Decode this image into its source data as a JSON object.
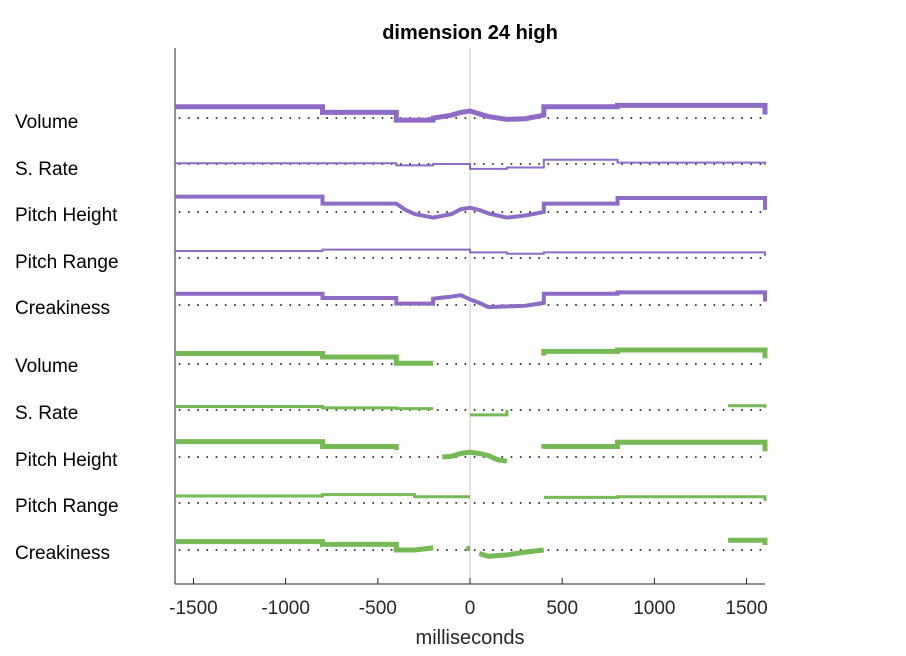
{
  "chart_data": {
    "type": "line",
    "title": "dimension 24 high",
    "xlabel": "milliseconds",
    "xlim": [
      -1600,
      1600
    ],
    "xticks": [
      -1500,
      -1000,
      -500,
      0,
      500,
      1000,
      1500
    ],
    "xtick_labels": [
      "-1500",
      "-1000",
      "-500",
      "0",
      "500",
      "1000",
      "1500"
    ],
    "zero_line": true,
    "grid": false,
    "colors": {
      "group1": "#8e6bc4",
      "group2": "#77b957"
    },
    "series": [
      {
        "label": "Volume",
        "group": 1,
        "color": "#8e6bc4",
        "width": 5,
        "points": [
          [
            -1600,
            1.6
          ],
          [
            -800,
            1.6
          ],
          [
            -800,
            0.8
          ],
          [
            -400,
            0.8
          ],
          [
            -400,
            -0.3
          ],
          [
            -200,
            -0.3
          ],
          [
            -200,
            0
          ],
          [
            -100,
            0.4
          ],
          [
            -50,
            0.8
          ],
          [
            0,
            1
          ],
          [
            50,
            0.6
          ],
          [
            100,
            0.2
          ],
          [
            200,
            -0.2
          ],
          [
            300,
            -0.1
          ],
          [
            400,
            0.4
          ],
          [
            400,
            1.6
          ],
          [
            800,
            1.6
          ],
          [
            800,
            1.8
          ],
          [
            1600,
            1.8
          ],
          [
            1600,
            0.5
          ]
        ]
      },
      {
        "label": "S. Rate",
        "group": 1,
        "color": "#8e6bc4",
        "width": 2,
        "points": [
          [
            -1600,
            0.1
          ],
          [
            -400,
            0.1
          ],
          [
            -400,
            -0.2
          ],
          [
            -200,
            -0.2
          ],
          [
            -200,
            0
          ],
          [
            0,
            0
          ],
          [
            0,
            -0.7
          ],
          [
            200,
            -0.7
          ],
          [
            200,
            -0.5
          ],
          [
            400,
            -0.5
          ],
          [
            400,
            0.6
          ],
          [
            800,
            0.6
          ],
          [
            800,
            0.2
          ],
          [
            1600,
            0.2
          ],
          [
            1600,
            -0.1
          ]
        ]
      },
      {
        "label": "Pitch Height",
        "group": 1,
        "color": "#8e6bc4",
        "width": 4,
        "points": [
          [
            -1600,
            2.2
          ],
          [
            -800,
            2.2
          ],
          [
            -800,
            1.2
          ],
          [
            -400,
            1.2
          ],
          [
            -350,
            0.3
          ],
          [
            -300,
            -0.3
          ],
          [
            -200,
            -0.8
          ],
          [
            -100,
            -0.3
          ],
          [
            -50,
            0.4
          ],
          [
            0,
            0.6
          ],
          [
            50,
            0.3
          ],
          [
            100,
            -0.2
          ],
          [
            200,
            -0.8
          ],
          [
            300,
            -0.5
          ],
          [
            400,
            0
          ],
          [
            400,
            1.2
          ],
          [
            800,
            1.2
          ],
          [
            800,
            2
          ],
          [
            1600,
            2
          ],
          [
            1600,
            0.3
          ]
        ]
      },
      {
        "label": "Pitch Range",
        "group": 1,
        "color": "#8e6bc4",
        "width": 2,
        "points": [
          [
            -1600,
            1
          ],
          [
            -800,
            1
          ],
          [
            -800,
            1.2
          ],
          [
            0,
            1.2
          ],
          [
            0,
            0.8
          ],
          [
            200,
            0.8
          ],
          [
            200,
            0.6
          ],
          [
            400,
            0.6
          ],
          [
            400,
            0.8
          ],
          [
            1600,
            0.8
          ],
          [
            1600,
            0.3
          ]
        ]
      },
      {
        "label": "Creakiness",
        "group": 1,
        "color": "#8e6bc4",
        "width": 4,
        "points": [
          [
            -1600,
            1.6
          ],
          [
            -800,
            1.6
          ],
          [
            -800,
            1
          ],
          [
            -400,
            1
          ],
          [
            -400,
            0.2
          ],
          [
            -200,
            0.2
          ],
          [
            -200,
            0.9
          ],
          [
            -100,
            1.2
          ],
          [
            -50,
            1.4
          ],
          [
            0,
            0.8
          ],
          [
            50,
            0.3
          ],
          [
            100,
            -0.3
          ],
          [
            200,
            -0.2
          ],
          [
            300,
            -0.1
          ],
          [
            400,
            0.3
          ],
          [
            400,
            1.6
          ],
          [
            800,
            1.6
          ],
          [
            800,
            1.8
          ],
          [
            1600,
            1.8
          ],
          [
            1600,
            0.5
          ]
        ]
      },
      {
        "label": "Volume",
        "group": 2,
        "color": "#77b957",
        "width": 5,
        "segments": [
          [
            [
              -1600,
              1.5
            ],
            [
              -800,
              1.5
            ],
            [
              -800,
              1
            ],
            [
              -400,
              1
            ],
            [
              -400,
              0.1
            ],
            [
              -200,
              0.1
            ]
          ],
          [
            [
              400,
              1.2
            ],
            [
              400,
              1.8
            ],
            [
              800,
              1.8
            ],
            [
              800,
              2
            ],
            [
              1600,
              2
            ],
            [
              1600,
              0.8
            ]
          ]
        ]
      },
      {
        "label": "S. Rate",
        "group": 2,
        "color": "#77b957",
        "width": 3,
        "segments": [
          [
            [
              -1600,
              0.5
            ],
            [
              -800,
              0.5
            ],
            [
              -800,
              0.3
            ],
            [
              -400,
              0.3
            ],
            [
              -400,
              0.2
            ],
            [
              -200,
              0.2
            ]
          ],
          [
            [
              0,
              -0.7
            ],
            [
              200,
              -0.7
            ],
            [
              200,
              0
            ]
          ],
          [
            [
              1400,
              0.6
            ],
            [
              1600,
              0.6
            ],
            [
              1600,
              0.3
            ]
          ]
        ]
      },
      {
        "label": "Pitch Height",
        "group": 2,
        "color": "#77b957",
        "width": 5,
        "segments": [
          [
            [
              -1600,
              2.2
            ],
            [
              -800,
              2.2
            ],
            [
              -800,
              1.5
            ],
            [
              -400,
              1.5
            ],
            [
              -400,
              1
            ]
          ],
          [
            [
              -150,
              0
            ],
            [
              -100,
              0.1
            ],
            [
              -50,
              0.5
            ],
            [
              0,
              0.7
            ],
            [
              50,
              0.5
            ],
            [
              100,
              0.2
            ],
            [
              150,
              -0.4
            ],
            [
              200,
              -0.6
            ]
          ],
          [
            [
              400,
              1.2
            ],
            [
              400,
              1.5
            ],
            [
              800,
              1.5
            ],
            [
              800,
              2.1
            ],
            [
              1600,
              2.1
            ],
            [
              1600,
              0.8
            ]
          ]
        ]
      },
      {
        "label": "Pitch Range",
        "group": 2,
        "color": "#77b957",
        "width": 3,
        "segments": [
          [
            [
              -1600,
              1
            ],
            [
              -800,
              1
            ],
            [
              -800,
              1.2
            ],
            [
              -300,
              1.2
            ],
            [
              -300,
              0.9
            ],
            [
              0,
              0.9
            ]
          ],
          [
            [
              400,
              0.8
            ],
            [
              800,
              0.8
            ],
            [
              800,
              0.9
            ],
            [
              1600,
              0.9
            ],
            [
              1600,
              0.3
            ]
          ]
        ]
      },
      {
        "label": "Creakiness",
        "group": 2,
        "color": "#77b957",
        "width": 5,
        "segments": [
          [
            [
              -1600,
              1.2
            ],
            [
              -800,
              1.2
            ],
            [
              -800,
              0.8
            ],
            [
              -400,
              0.8
            ],
            [
              -400,
              0
            ],
            [
              -300,
              0
            ],
            [
              -200,
              0.3
            ]
          ],
          [
            [
              -20,
              0.2
            ],
            [
              0,
              0.2
            ]
          ],
          [
            [
              50,
              -0.5
            ],
            [
              100,
              -0.9
            ],
            [
              200,
              -0.7
            ],
            [
              300,
              -0.3
            ],
            [
              400,
              0
            ]
          ],
          [
            [
              1400,
              1.4
            ],
            [
              1600,
              1.4
            ],
            [
              1600,
              0.7
            ]
          ]
        ]
      }
    ]
  }
}
